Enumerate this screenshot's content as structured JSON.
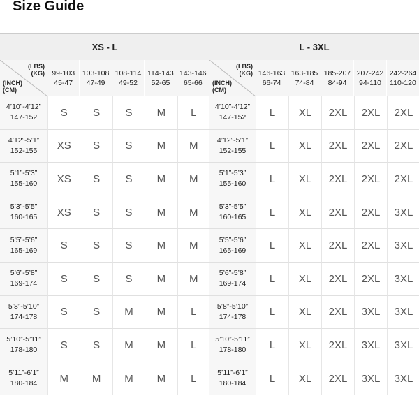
{
  "title": "Size Guide",
  "groups": [
    {
      "title": "XS - L",
      "corner": {
        "weight": [
          "(LBS)",
          "(KG)"
        ],
        "height": [
          "(INCH)",
          "(CM)"
        ]
      },
      "columns": [
        {
          "lbs": "99-103",
          "kg": "45-47"
        },
        {
          "lbs": "103-108",
          "kg": "47-49"
        },
        {
          "lbs": "108-114",
          "kg": "49-52"
        },
        {
          "lbs": "114-143",
          "kg": "52-65"
        },
        {
          "lbs": "143-146",
          "kg": "65-66"
        }
      ],
      "rows": [
        {
          "inch": "4’10”-4’12”",
          "cm": "147-152",
          "sizes": [
            "S",
            "S",
            "S",
            "M",
            "L"
          ]
        },
        {
          "inch": "4’12”-5’1”",
          "cm": "152-155",
          "sizes": [
            "XS",
            "S",
            "S",
            "M",
            "M"
          ]
        },
        {
          "inch": "5’1”-5’3”",
          "cm": "155-160",
          "sizes": [
            "XS",
            "S",
            "S",
            "M",
            "M"
          ]
        },
        {
          "inch": "5’3”-5’5”",
          "cm": "160-165",
          "sizes": [
            "XS",
            "S",
            "S",
            "M",
            "M"
          ]
        },
        {
          "inch": "5’5”-5’6”",
          "cm": "165-169",
          "sizes": [
            "S",
            "S",
            "S",
            "M",
            "M"
          ]
        },
        {
          "inch": "5’6”-5’8”",
          "cm": "169-174",
          "sizes": [
            "S",
            "S",
            "S",
            "M",
            "M"
          ]
        },
        {
          "inch": "5’8”-5’10”",
          "cm": "174-178",
          "sizes": [
            "S",
            "S",
            "M",
            "M",
            "L"
          ]
        },
        {
          "inch": "5’10”-5’11”",
          "cm": "178-180",
          "sizes": [
            "S",
            "S",
            "M",
            "M",
            "L"
          ]
        },
        {
          "inch": "5’11”-6’1”",
          "cm": "180-184",
          "sizes": [
            "M",
            "M",
            "M",
            "M",
            "L"
          ]
        }
      ]
    },
    {
      "title": "L - 3XL",
      "corner": {
        "weight": [
          "(LBS)",
          "(KG)"
        ],
        "height": [
          "(INCH)",
          "(CM)"
        ]
      },
      "columns": [
        {
          "lbs": "146-163",
          "kg": "66-74"
        },
        {
          "lbs": "163-185",
          "kg": "74-84"
        },
        {
          "lbs": "185-207",
          "kg": "84-94"
        },
        {
          "lbs": "207-242",
          "kg": "94-110"
        },
        {
          "lbs": "242-264",
          "kg": "110-120"
        }
      ],
      "rows": [
        {
          "inch": "4’10”-4’12”",
          "cm": "147-152",
          "sizes": [
            "L",
            "XL",
            "2XL",
            "2XL",
            "2XL"
          ]
        },
        {
          "inch": "4’12”-5’1”",
          "cm": "152-155",
          "sizes": [
            "L",
            "XL",
            "2XL",
            "2XL",
            "2XL"
          ]
        },
        {
          "inch": "5’1”-5’3”",
          "cm": "155-160",
          "sizes": [
            "L",
            "XL",
            "2XL",
            "2XL",
            "2XL"
          ]
        },
        {
          "inch": "5’3”-5’5”",
          "cm": "160-165",
          "sizes": [
            "L",
            "XL",
            "2XL",
            "2XL",
            "3XL"
          ]
        },
        {
          "inch": "5’5”-5’6”",
          "cm": "165-169",
          "sizes": [
            "L",
            "XL",
            "2XL",
            "2XL",
            "3XL"
          ]
        },
        {
          "inch": "5’6”-5’8”",
          "cm": "169-174",
          "sizes": [
            "L",
            "XL",
            "2XL",
            "2XL",
            "3XL"
          ]
        },
        {
          "inch": "5’8”-5’10”",
          "cm": "174-178",
          "sizes": [
            "L",
            "XL",
            "2XL",
            "3XL",
            "3XL"
          ]
        },
        {
          "inch": "5’10”-5’11”",
          "cm": "178-180",
          "sizes": [
            "L",
            "XL",
            "2XL",
            "3XL",
            "3XL"
          ]
        },
        {
          "inch": "5’11”-6’1”",
          "cm": "180-184",
          "sizes": [
            "L",
            "XL",
            "2XL",
            "3XL",
            "3XL"
          ]
        }
      ]
    }
  ]
}
